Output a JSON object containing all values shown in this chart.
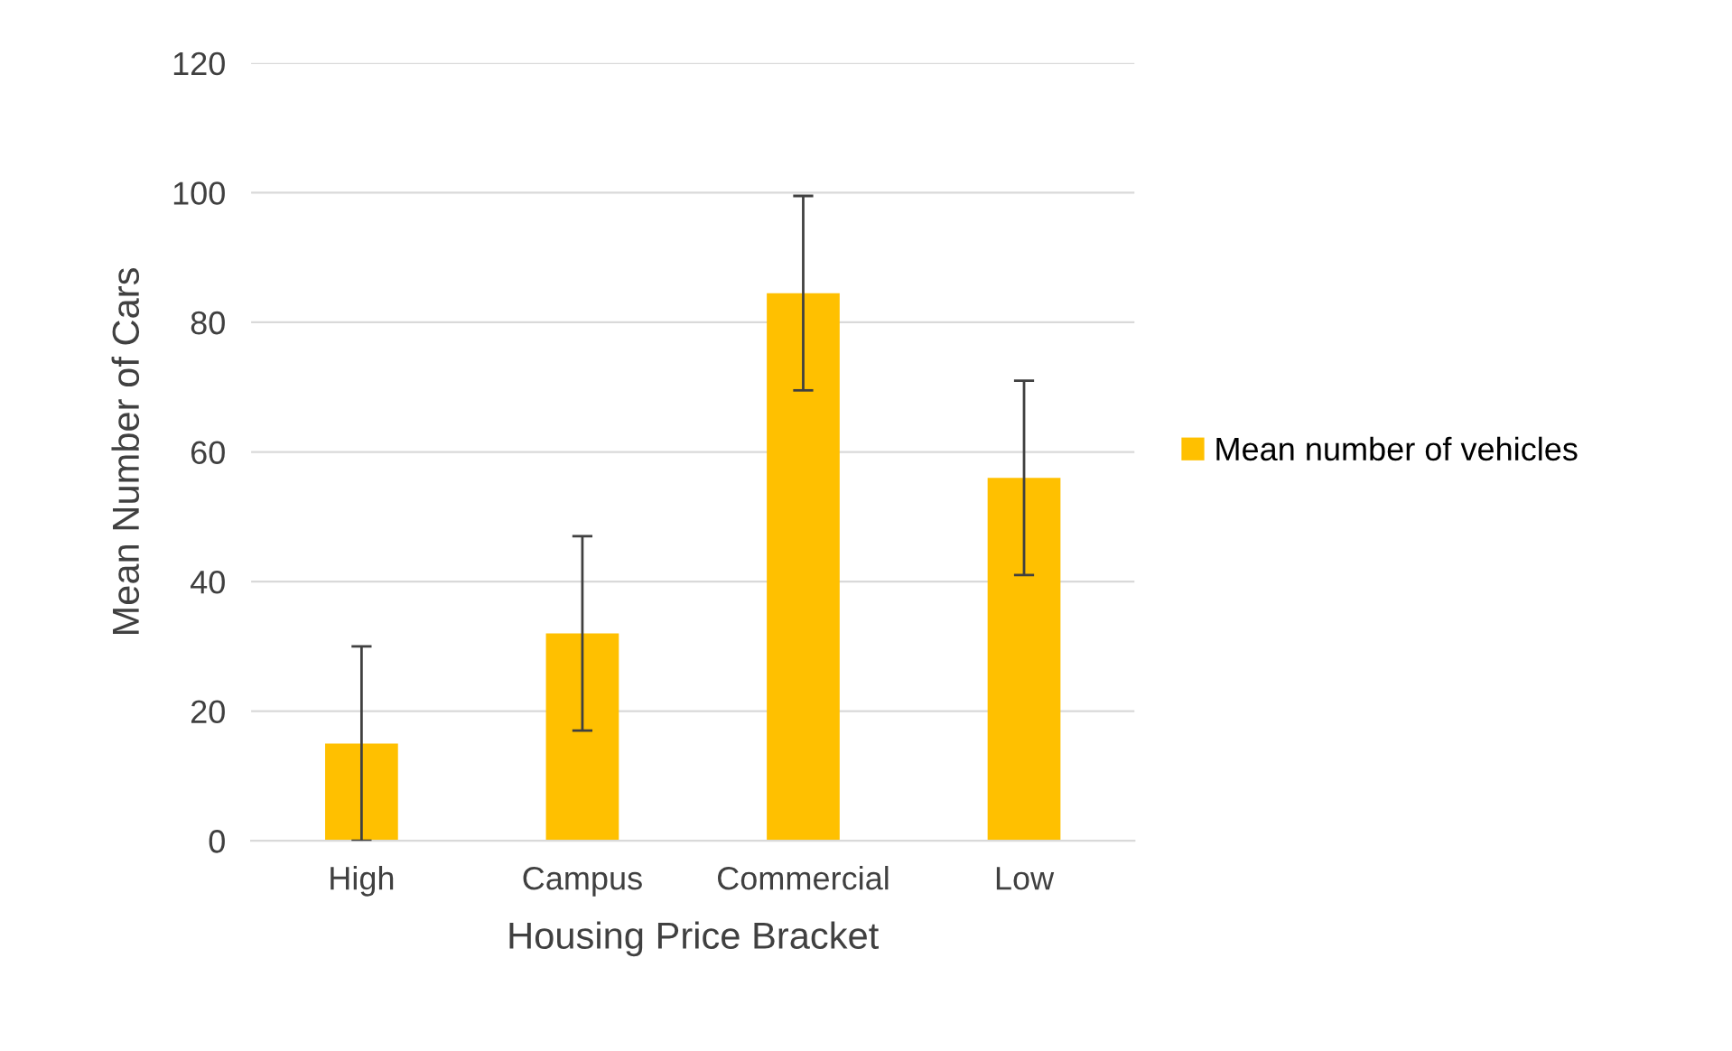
{
  "chart_data": {
    "type": "bar",
    "xlabel": "Housing Price Bracket",
    "ylabel": "Mean Number of Cars",
    "categories": [
      "High",
      "Campus",
      "Commercial",
      "Low"
    ],
    "series": [
      {
        "name": "Mean number of vehicles",
        "color": "#ffc000",
        "values": [
          15,
          32,
          84.5,
          56
        ],
        "errors": [
          15,
          15,
          15,
          15
        ]
      }
    ],
    "ylim": [
      0,
      120
    ],
    "yticks": [
      0,
      20,
      40,
      60,
      80,
      100,
      120
    ],
    "grid": "y",
    "legend": "right"
  }
}
